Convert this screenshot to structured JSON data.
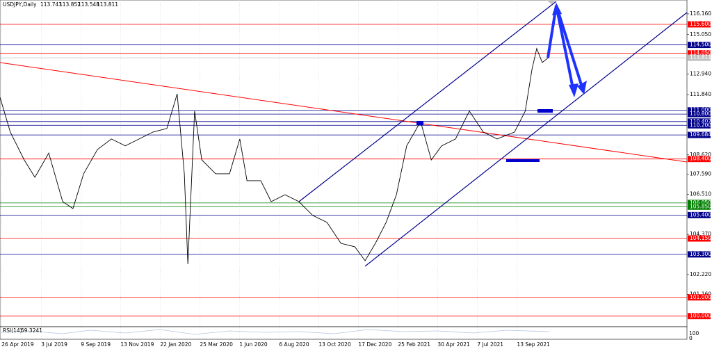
{
  "chart_data": {
    "type": "line",
    "symbol": "USDJPY,Daily",
    "ohlc": [
      113.743,
      113.852,
      113.548,
      113.811
    ],
    "rsi": {
      "label": "RSI(14)",
      "value": 59.3241,
      "axis": [
        100,
        0
      ]
    },
    "ylim": [
      99.43,
      116.9
    ],
    "xlim": [
      -0.04,
      17.29
    ],
    "yticks": [
      {
        "value": 116.16,
        "label": "116.160"
      },
      {
        "value": 115.05,
        "label": "115.050"
      },
      {
        "value": 112.94,
        "label": "112.940"
      },
      {
        "value": 111.84,
        "label": "111.840"
      },
      {
        "value": 108.62,
        "label": "108.620"
      },
      {
        "value": 107.59,
        "label": "107.590"
      },
      {
        "value": 106.51,
        "label": "106.510"
      },
      {
        "value": 104.37,
        "label": "104.370"
      },
      {
        "value": 102.22,
        "label": "102.220"
      },
      {
        "value": 101.16,
        "label": "101.160"
      }
    ],
    "xticks": [
      {
        "value": 0,
        "label": "26 Apr 2019"
      },
      {
        "value": 1,
        "label": "3 Jul 2019"
      },
      {
        "value": 2,
        "label": "9 Sep 2019"
      },
      {
        "value": 3,
        "label": "13 Nov 2019"
      },
      {
        "value": 4,
        "label": "22 Jan 2020"
      },
      {
        "value": 5,
        "label": "25 Mar 2020"
      },
      {
        "value": 6,
        "label": "1 Jun 2020"
      },
      {
        "value": 7,
        "label": "6 Aug 2020"
      },
      {
        "value": 8,
        "label": "13 Oct 2020"
      },
      {
        "value": 9,
        "label": "17 Dec 2020"
      },
      {
        "value": 10,
        "label": "25 Feb 2021"
      },
      {
        "value": 11,
        "label": "30 Apr 2021"
      },
      {
        "value": 12,
        "label": "7 Jul 2021"
      },
      {
        "value": 13,
        "label": "13 Sep 2021"
      }
    ],
    "levels": [
      {
        "value": 115.6,
        "label": "115.600",
        "color": "#ff0000"
      },
      {
        "value": 114.5,
        "label": "114.500",
        "color": "#00008b"
      },
      {
        "value": 114.05,
        "label": "114.050",
        "color": "#ff0000"
      },
      {
        "value": 113.811,
        "label": "113.811",
        "color": "#c0c0c0"
      },
      {
        "value": 111.0,
        "label": "111.000",
        "color": "#00008b"
      },
      {
        "value": 110.8,
        "label": "110.800",
        "color": "#00008b"
      },
      {
        "value": 110.402,
        "label": "110.402",
        "color": "#00008b"
      },
      {
        "value": 110.2,
        "label": "110.200",
        "color": "#00008b"
      },
      {
        "value": 109.684,
        "label": "109.684",
        "color": "#00008b"
      },
      {
        "value": 108.4,
        "label": "108.400",
        "color": "#ff0000"
      },
      {
        "value": 106.05,
        "label": "106.050",
        "color": "#008000"
      },
      {
        "value": 105.85,
        "label": "105.850",
        "color": "#008000"
      },
      {
        "value": 105.4,
        "label": "105.400",
        "color": "#00008b"
      },
      {
        "value": 104.15,
        "label": "104.150",
        "color": "#ff0000"
      },
      {
        "value": 103.3,
        "label": "103.300",
        "color": "#00008b"
      },
      {
        "value": 101.0,
        "label": "101.000",
        "color": "#ff0000"
      },
      {
        "value": 100.0,
        "label": "100.000",
        "color": "#ff0000"
      }
    ],
    "series": [
      {
        "name": "USDJPY",
        "color": "#000000",
        "x": [
          -0.04,
          0.22,
          0.57,
          0.84,
          1.19,
          1.54,
          1.8,
          2.07,
          2.42,
          2.77,
          3.12,
          3.47,
          3.82,
          4.17,
          4.43,
          4.61,
          4.7,
          4.87,
          5.05,
          5.4,
          5.75,
          6.01,
          6.19,
          6.54,
          6.8,
          7.15,
          7.5,
          7.85,
          8.21,
          8.56,
          8.91,
          9.17,
          9.43,
          9.7,
          9.96,
          10.22,
          10.57,
          10.84,
          11.1,
          11.45,
          11.8,
          12.15,
          12.5,
          12.94,
          13.21,
          13.38,
          13.5,
          13.64,
          13.82
        ],
        "values": [
          111.7,
          109.84,
          108.35,
          107.42,
          108.72,
          106.12,
          105.75,
          107.61,
          108.91,
          109.47,
          109.1,
          109.47,
          109.84,
          110.03,
          111.88,
          107.61,
          102.78,
          110.96,
          108.35,
          107.61,
          107.61,
          109.47,
          107.24,
          107.24,
          106.12,
          106.49,
          106.12,
          105.38,
          105.01,
          103.89,
          103.71,
          102.96,
          103.89,
          105.01,
          106.49,
          109.1,
          110.4,
          108.35,
          109.1,
          109.47,
          110.96,
          109.84,
          109.47,
          109.84,
          110.96,
          113.19,
          114.3,
          113.56,
          113.86
        ]
      }
    ]
  }
}
